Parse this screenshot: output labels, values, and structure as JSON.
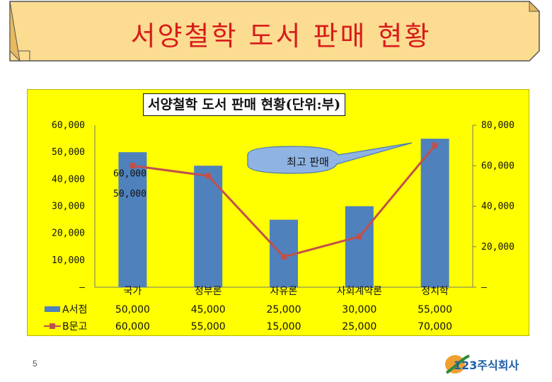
{
  "banner": {
    "title": "서양철학 도서 판매 현황"
  },
  "page_number": "5",
  "logo": {
    "text": "123주식회사"
  },
  "callout": {
    "text": "최고 판매"
  },
  "colors": {
    "bar": "#4f81bd",
    "line": "#c0504d",
    "panel": "#ffff00"
  },
  "chart_data": {
    "type": "bar",
    "title": "서양철학 도서 판매 현황(단위:부)",
    "categories": [
      "국가",
      "정부론",
      "자유론",
      "사회계약론",
      "정치학"
    ],
    "series": [
      {
        "name": "A서점",
        "type": "bar",
        "axis": "left",
        "values": [
          50000,
          45000,
          25000,
          30000,
          55000
        ]
      },
      {
        "name": "B문고",
        "type": "line",
        "axis": "right",
        "values": [
          60000,
          55000,
          15000,
          25000,
          70000
        ]
      }
    ],
    "y_left": {
      "range": [
        0,
        60000
      ],
      "ticks": [
        "–",
        "10,000",
        "20,000",
        "30,000",
        "40,000",
        "50,000",
        "60,000"
      ]
    },
    "y_right": {
      "range": [
        0,
        80000
      ],
      "ticks": [
        "–",
        "20,000",
        "40,000",
        "60,000",
        "80,000"
      ]
    },
    "floating_labels": [
      "60,000",
      "50,000"
    ],
    "data_table": {
      "rows": [
        {
          "label": "A서점",
          "values": [
            "50,000",
            "45,000",
            "25,000",
            "30,000",
            "55,000"
          ]
        },
        {
          "label": "B문고",
          "values": [
            "60,000",
            "55,000",
            "15,000",
            "25,000",
            "70,000"
          ]
        }
      ]
    },
    "legend": "data-table",
    "grid": false
  }
}
